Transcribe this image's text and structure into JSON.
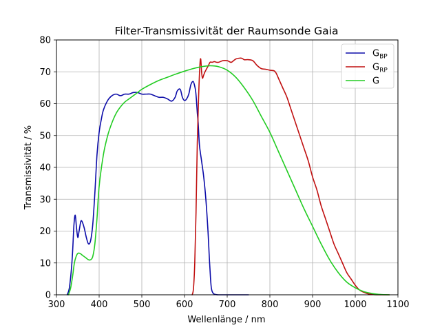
{
  "chart_data": {
    "type": "line",
    "title": "Filter-Transmissivität der Raumsonde Gaia",
    "xlabel": "Wellenlänge / nm",
    "ylabel": "Transmissivität / %",
    "xlim": [
      300,
      1100
    ],
    "ylim": [
      0,
      80
    ],
    "xticks": [
      "300",
      "400",
      "500",
      "600",
      "700",
      "800",
      "900",
      "1000",
      "1100"
    ],
    "yticks": [
      "0",
      "10",
      "20",
      "30",
      "40",
      "50",
      "60",
      "70",
      "80"
    ],
    "grid": true,
    "legend_position": "top-right",
    "series": [
      {
        "name": "G",
        "sub": "BP",
        "color": "#0b0ba8",
        "x": [
          325,
          330,
          335,
          338,
          341,
          344,
          347,
          350,
          353,
          357,
          360,
          365,
          370,
          375,
          380,
          385,
          390,
          395,
          400,
          405,
          410,
          420,
          430,
          440,
          450,
          460,
          470,
          480,
          490,
          500,
          510,
          520,
          530,
          540,
          550,
          560,
          570,
          578,
          583,
          590,
          595,
          600,
          605,
          610,
          615,
          620,
          623,
          626,
          628,
          630,
          632,
          635,
          640,
          645,
          650,
          655,
          658,
          661,
          663,
          666,
          670,
          680,
          700,
          750
        ],
        "y": [
          0,
          2,
          8,
          14,
          22,
          25,
          21,
          18,
          20,
          23,
          23,
          21,
          18,
          16,
          17,
          22,
          32,
          44,
          51,
          55,
          58,
          61,
          62.5,
          63,
          62.5,
          63,
          63,
          63.5,
          63.5,
          63,
          63,
          63,
          62.5,
          62,
          62,
          61.5,
          60.8,
          62,
          64,
          64.5,
          62,
          61,
          61.5,
          63,
          66,
          67,
          66,
          64,
          61,
          57,
          54,
          47,
          42,
          37,
          30,
          20,
          12,
          5,
          2,
          0.7,
          0.2,
          0,
          0,
          0
        ]
      },
      {
        "name": "G",
        "sub": "RP",
        "color": "#c01010",
        "x": [
          618,
          621,
          624,
          627,
          630,
          633,
          636,
          638,
          640,
          642,
          645,
          648,
          652,
          656,
          660,
          665,
          670,
          675,
          680,
          690,
          700,
          705,
          710,
          720,
          730,
          735,
          740,
          745,
          750,
          760,
          770,
          780,
          790,
          800,
          810,
          815,
          820,
          830,
          840,
          850,
          860,
          870,
          880,
          890,
          900,
          910,
          920,
          930,
          940,
          950,
          960,
          970,
          980,
          990,
          1000,
          1010,
          1020,
          1030,
          1040,
          1050,
          1060,
          1070,
          1080
        ],
        "y": [
          0,
          2,
          10,
          26,
          48,
          62,
          72,
          74,
          70,
          68,
          69,
          70,
          71,
          72,
          73,
          73,
          73.2,
          73,
          73,
          73.5,
          73.5,
          73.2,
          73,
          74,
          74.3,
          74.2,
          73.8,
          73.8,
          73.8,
          73.5,
          72,
          71,
          70.8,
          70.5,
          70.3,
          69.5,
          68,
          65,
          62,
          58,
          54,
          50,
          46,
          42,
          37,
          33,
          28,
          24,
          20,
          16,
          13,
          10,
          7,
          5,
          3,
          1.5,
          0.8,
          0.3,
          0.1,
          0,
          0,
          0,
          0
        ]
      },
      {
        "name": "G",
        "sub": "",
        "color": "#22cc22",
        "x": [
          328,
          333,
          338,
          342,
          346,
          350,
          355,
          360,
          365,
          370,
          375,
          380,
          385,
          390,
          395,
          400,
          410,
          420,
          430,
          440,
          450,
          460,
          470,
          480,
          490,
          500,
          520,
          540,
          560,
          580,
          600,
          620,
          640,
          660,
          680,
          700,
          720,
          740,
          760,
          780,
          800,
          820,
          840,
          860,
          880,
          900,
          920,
          940,
          960,
          980,
          1000,
          1020,
          1040,
          1060,
          1080
        ],
        "y": [
          0,
          2,
          6,
          10,
          12,
          13,
          13,
          12.5,
          12,
          11.5,
          11,
          11,
          12,
          16,
          24,
          34,
          44,
          50,
          54,
          57,
          59,
          60.5,
          61.5,
          62.5,
          63.5,
          64.5,
          66,
          67.3,
          68.3,
          69.3,
          70.2,
          71,
          71.6,
          71.9,
          71.6,
          70.5,
          68.3,
          65,
          61,
          56,
          51,
          45,
          39,
          33,
          27,
          21.5,
          16,
          11,
          7,
          4,
          2.2,
          1,
          0.4,
          0.1,
          0
        ]
      }
    ]
  }
}
